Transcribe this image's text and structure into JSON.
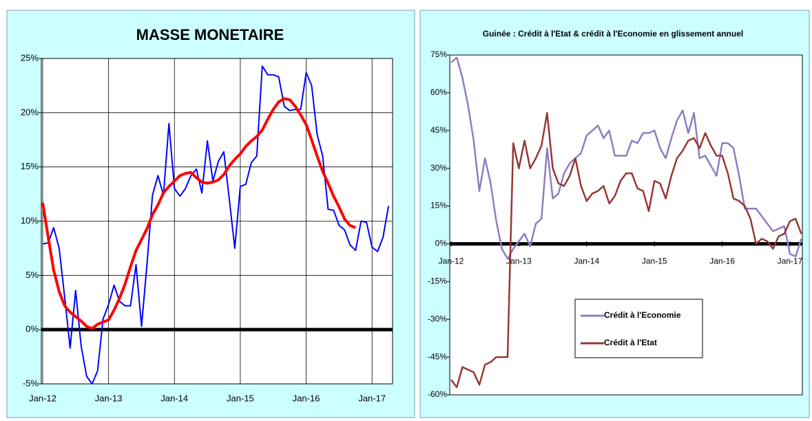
{
  "chart_data": [
    {
      "type": "line",
      "title": "MASSE MONETAIRE",
      "categories": [
        "Jan-12",
        null,
        null,
        null,
        null,
        null,
        null,
        null,
        null,
        null,
        null,
        null,
        "Jan-13",
        null,
        null,
        null,
        null,
        null,
        null,
        null,
        null,
        null,
        null,
        null,
        "Jan-14",
        null,
        null,
        null,
        null,
        null,
        null,
        null,
        null,
        null,
        null,
        null,
        "Jan-15",
        null,
        null,
        null,
        null,
        null,
        null,
        null,
        null,
        null,
        null,
        null,
        "Jan-16",
        null,
        null,
        null,
        null,
        null,
        null,
        null,
        null,
        null,
        null,
        null,
        "Jan-17",
        null,
        null,
        null
      ],
      "series": [
        {
          "color": "#0000ff",
          "width": 2,
          "values": [
            7.9,
            8.0,
            9.4,
            7.5,
            3.0,
            -1.7,
            3.6,
            -1.5,
            -4.3,
            -5.0,
            -3.8,
            1.0,
            2.3,
            4.1,
            2.6,
            2.2,
            2.2,
            6.0,
            0.3,
            6.0,
            12.4,
            14.2,
            12.4,
            19.0,
            13.0,
            12.3,
            13.0,
            14.2,
            14.8,
            12.6,
            17.4,
            13.7,
            15.5,
            16.4,
            12.0,
            7.5,
            13.2,
            13.4,
            15.4,
            16.0,
            24.3,
            23.5,
            23.5,
            23.3,
            20.6,
            20.2,
            20.3,
            20.3,
            23.7,
            22.5,
            18.0,
            16.0,
            11.1,
            11.0,
            9.6,
            9.2,
            7.8,
            7.3,
            10.0,
            9.9,
            7.6,
            7.2,
            8.5,
            11.4
          ]
        },
        {
          "color": "#ff0000",
          "width": 4,
          "values": [
            11.7,
            8.5,
            5.5,
            3.5,
            2.2,
            1.6,
            1.2,
            0.8,
            0.3,
            0.1,
            0.5,
            0.7,
            0.9,
            1.8,
            2.9,
            4.2,
            5.8,
            7.3,
            8.3,
            9.3,
            10.6,
            11.5,
            12.6,
            13.2,
            13.7,
            14.2,
            14.4,
            14.5,
            14.0,
            13.6,
            13.5,
            13.6,
            13.8,
            14.3,
            15.1,
            15.7,
            16.2,
            16.9,
            17.4,
            17.8,
            18.4,
            19.4,
            20.3,
            21.0,
            21.3,
            21.2,
            20.6,
            19.8,
            18.9,
            17.5,
            16.0,
            14.6,
            13.5,
            12.3,
            11.3,
            10.2,
            9.6,
            9.4,
            null,
            null,
            null,
            null,
            null,
            null
          ]
        }
      ],
      "ylim": [
        -5,
        25
      ],
      "yticks": [
        {
          "value": -5,
          "label": "-5%"
        },
        {
          "value": 0,
          "label": "0%"
        },
        {
          "value": 5,
          "label": "5%"
        },
        {
          "value": 10,
          "label": "10%"
        },
        {
          "value": 15,
          "label": "15%"
        },
        {
          "value": 20,
          "label": "20%"
        },
        {
          "value": 25,
          "label": "25%"
        }
      ],
      "grid": true,
      "zero_line": true
    },
    {
      "type": "line",
      "title": "Guinée : Crédit à l'Etat & crédit à l'Economie en glissement annuel",
      "categories": [
        "Jan-12",
        null,
        null,
        null,
        null,
        null,
        null,
        null,
        null,
        null,
        null,
        null,
        "Jan-13",
        null,
        null,
        null,
        null,
        null,
        null,
        null,
        null,
        null,
        null,
        null,
        "Jan-14",
        null,
        null,
        null,
        null,
        null,
        null,
        null,
        null,
        null,
        null,
        null,
        "Jan-15",
        null,
        null,
        null,
        null,
        null,
        null,
        null,
        null,
        null,
        null,
        null,
        "Jan-16",
        null,
        null,
        null,
        null,
        null,
        null,
        null,
        null,
        null,
        null,
        null,
        "Jan-17",
        null,
        null
      ],
      "series": [
        {
          "name": "Crédit à l'Economie",
          "color": "#8e7cc3",
          "width": 2.5,
          "values": [
            72,
            74,
            66,
            55,
            41,
            21,
            34,
            24,
            9,
            -2,
            -6,
            -2,
            1,
            4,
            -1,
            8,
            10,
            38,
            18,
            20,
            28,
            32,
            34,
            36,
            43,
            45,
            47,
            42,
            45,
            35,
            35,
            35,
            41,
            40,
            44,
            44,
            45,
            38,
            34,
            42,
            49,
            53,
            44,
            52,
            34,
            35,
            31,
            27,
            40,
            40,
            38,
            27,
            14,
            14,
            14,
            11,
            8,
            5,
            6,
            7,
            -4,
            -5,
            2
          ]
        },
        {
          "name": "Crédit à l'Etat",
          "color": "#953735",
          "width": 2.5,
          "values": [
            -54,
            -57,
            -49,
            -50,
            -51,
            -56,
            -48,
            -47,
            -45,
            -45,
            -45,
            40,
            30,
            41,
            30,
            34,
            39,
            52,
            30,
            24,
            23,
            27,
            34,
            23,
            17,
            20,
            21,
            23,
            16,
            19,
            25,
            28,
            28,
            22,
            21,
            13,
            25,
            24,
            18,
            27,
            34,
            37,
            41,
            42,
            38,
            44,
            39,
            35,
            35,
            28,
            18,
            17,
            15,
            10,
            0,
            2,
            1,
            -2,
            3,
            4,
            9,
            10,
            4
          ]
        }
      ],
      "ylim": [
        -60,
        75
      ],
      "yticks": [
        {
          "value": -60,
          "label": "-60%"
        },
        {
          "value": -45,
          "label": "-45%"
        },
        {
          "value": -30,
          "label": "-30%"
        },
        {
          "value": -15,
          "label": "-15%"
        },
        {
          "value": 0,
          "label": "0%"
        },
        {
          "value": 15,
          "label": "15%"
        },
        {
          "value": 30,
          "label": "30%"
        },
        {
          "value": 45,
          "label": "45%"
        },
        {
          "value": 60,
          "label": "60%"
        },
        {
          "value": 75,
          "label": "75%"
        }
      ],
      "grid": false,
      "zero_line": true,
      "legend": "center"
    }
  ]
}
